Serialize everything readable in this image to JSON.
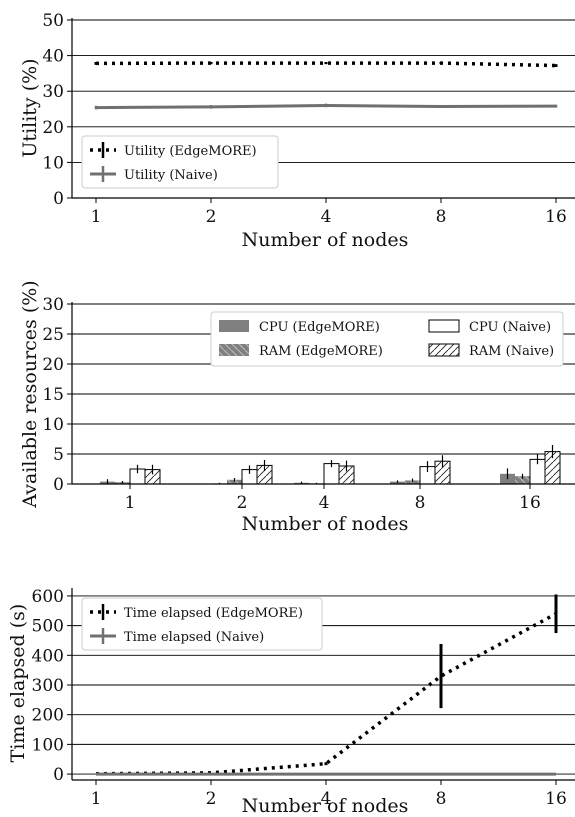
{
  "chart_data": [
    {
      "type": "line",
      "xlabel": "Number of nodes",
      "ylabel": "Utility (%)",
      "categories": [
        "1",
        "2",
        "4",
        "8",
        "16"
      ],
      "ylim": [
        0,
        50
      ],
      "yticks": [
        "0",
        "10",
        "20",
        "30",
        "40",
        "50"
      ],
      "grid": "horizontal",
      "legend_position": "lower-left",
      "series": [
        {
          "name": "Utility (EdgeMORE)",
          "values": [
            37.8,
            37.9,
            37.9,
            37.9,
            37.2
          ],
          "err": [
            0.4,
            0.3,
            0.3,
            0.3,
            0.4
          ],
          "style": "dotted",
          "color": "#000000"
        },
        {
          "name": "Utility (Naive)",
          "values": [
            25.4,
            25.6,
            26.0,
            25.7,
            25.8
          ],
          "err": [
            0.5,
            0.5,
            0.5,
            0.4,
            0.4
          ],
          "style": "solid",
          "color": "#707070"
        }
      ]
    },
    {
      "type": "bar",
      "xlabel": "Number of nodes",
      "ylabel": "Available resources (%)",
      "categories": [
        "1",
        "2",
        "4",
        "8",
        "16"
      ],
      "ylim": [
        0,
        30
      ],
      "yticks": [
        "0",
        "5",
        "10",
        "15",
        "20",
        "25",
        "30"
      ],
      "grid": "horizontal",
      "legend_position": "top-right",
      "series": [
        {
          "name": "CPU (EdgeMORE)",
          "values": [
            0.4,
            0.1,
            0.2,
            0.4,
            1.7
          ],
          "err": [
            0.4,
            0.1,
            0.2,
            0.2,
            0.9
          ],
          "fill": "#808080",
          "hatch": "none"
        },
        {
          "name": "RAM (EdgeMORE)",
          "values": [
            0.3,
            0.7,
            0.1,
            0.6,
            1.3
          ],
          "err": [
            0.2,
            0.3,
            0.1,
            0.3,
            0.4
          ],
          "fill": "#808080",
          "hatch": "backslash"
        },
        {
          "name": "CPU (Naive)",
          "values": [
            2.5,
            2.4,
            3.4,
            2.9,
            4.1
          ],
          "err": [
            0.7,
            0.7,
            0.6,
            0.9,
            0.8
          ],
          "fill": "#ffffff",
          "hatch": "none"
        },
        {
          "name": "RAM (Naive)",
          "values": [
            2.4,
            3.1,
            3.0,
            3.8,
            5.4
          ],
          "err": [
            0.8,
            0.9,
            0.9,
            1.0,
            1.1
          ],
          "fill": "#ffffff",
          "hatch": "slash"
        }
      ]
    },
    {
      "type": "line",
      "xlabel": "Number of nodes",
      "ylabel": "Time elapsed (s)",
      "categories": [
        "1",
        "2",
        "4",
        "8",
        "16"
      ],
      "ylim": [
        -20,
        620
      ],
      "yticks": [
        "0",
        "100",
        "200",
        "300",
        "400",
        "500",
        "600"
      ],
      "ytick_values": [
        0,
        100,
        200,
        300,
        400,
        500,
        600
      ],
      "grid": "horizontal",
      "legend_position": "top-left",
      "series": [
        {
          "name": "Time elapsed (EdgeMORE)",
          "values": [
            1,
            4,
            35,
            330,
            540
          ],
          "err": [
            0,
            0,
            5,
            108,
            65
          ],
          "style": "dotted",
          "color": "#000000"
        },
        {
          "name": "Time elapsed (Naive)",
          "values": [
            0,
            0,
            0,
            0,
            0
          ],
          "err": [
            0,
            0,
            0,
            0,
            0
          ],
          "style": "solid",
          "color": "#707070"
        }
      ]
    }
  ]
}
